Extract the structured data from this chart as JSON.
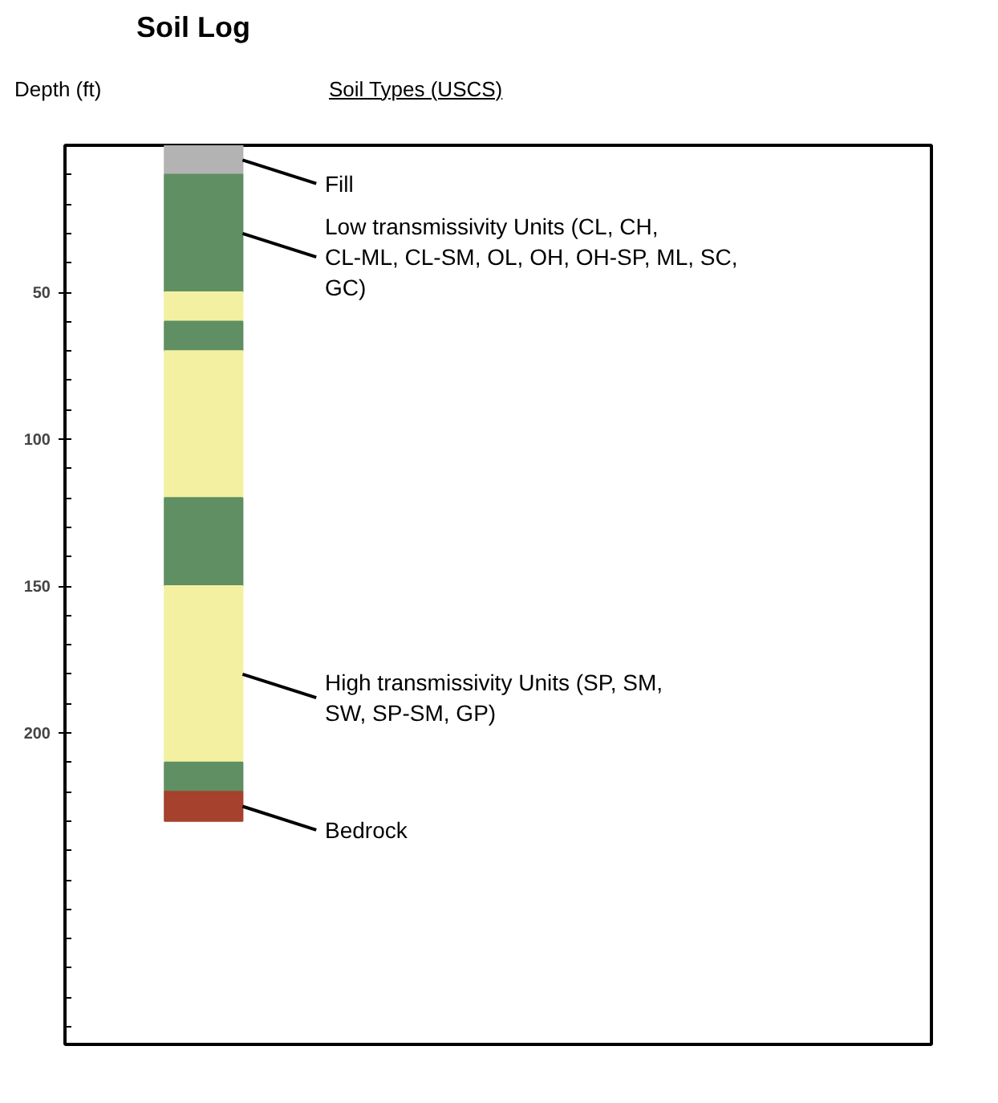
{
  "chart_data": {
    "type": "bar",
    "stacked": true,
    "title": "Soil Log",
    "ylabel": "Depth (ft)",
    "legend_title": "Soil Types (USCS)",
    "legend": false,
    "grid": false,
    "categories": [
      null
    ],
    "series": [
      {
        "name": "Fill",
        "color": "#b3b3b3",
        "values": [
          10
        ]
      },
      {
        "name": "Low transmissivity Units (CL, CH, CL-ML, CL-SM, OL, OH, OH-SP, ML, SC, GC)",
        "color": "#5f8f62",
        "values": [
          40
        ]
      },
      {
        "color": "#f3f0a2",
        "values": [
          10
        ]
      },
      {
        "color": "#5f8f62",
        "values": [
          10
        ]
      },
      {
        "color": "#f3f0a2",
        "values": [
          50
        ]
      },
      {
        "color": "#5f8f62",
        "values": [
          30
        ]
      },
      {
        "name": "High transmissivity Units (SP, SM, SW, SP-SM, GP)",
        "color": "#f3f0a2",
        "values": [
          60
        ]
      },
      {
        "color": "#5f8f62",
        "values": [
          10
        ]
      },
      {
        "name": "Bedrock",
        "color": "#a5412c",
        "values": [
          10
        ]
      }
    ],
    "ylim": [
      306,
      0
    ],
    "yticks": [
      50,
      100,
      150,
      200
    ]
  }
}
